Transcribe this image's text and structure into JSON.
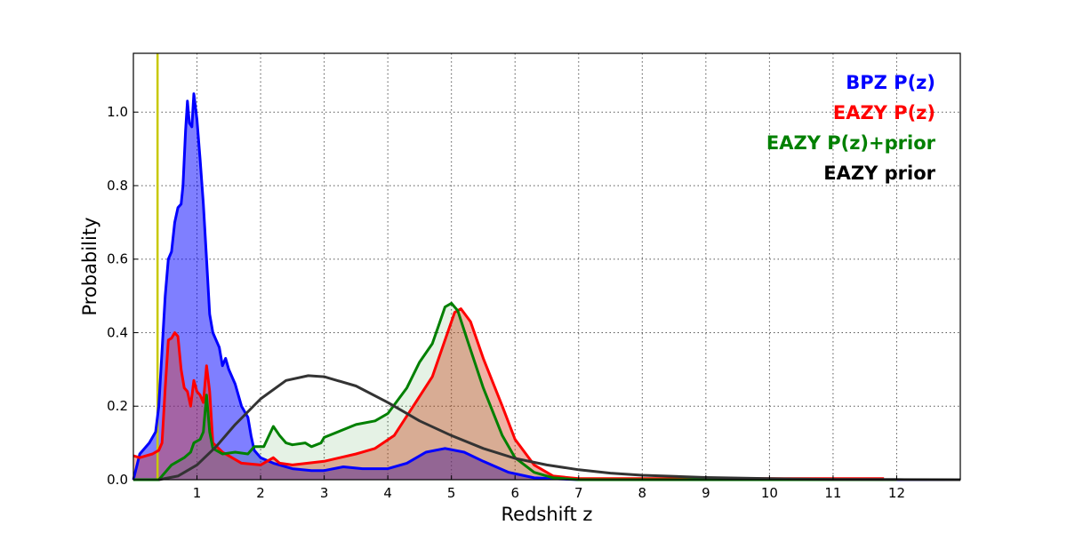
{
  "chart_data": {
    "type": "area",
    "title": "",
    "xlabel": "Redshift z",
    "ylabel": "Probability",
    "xlim": [
      0,
      13
    ],
    "ylim": [
      0,
      1.16
    ],
    "grid": true,
    "legend_position": "top-right",
    "xticks": [
      "1",
      "2",
      "3",
      "4",
      "5",
      "6",
      "7",
      "8",
      "9",
      "10",
      "11",
      "12"
    ],
    "yticks": [
      "0.0",
      "0.2",
      "0.4",
      "0.6",
      "0.8",
      "1.0"
    ],
    "vline": {
      "x": 0.38,
      "color": "#c8c800"
    },
    "series": [
      {
        "name": "BPZ P(z)",
        "color": "#0000ff",
        "fill": "rgba(0,0,255,0.5)",
        "x": [
          0,
          0.1,
          0.25,
          0.35,
          0.4,
          0.45,
          0.5,
          0.55,
          0.6,
          0.65,
          0.7,
          0.75,
          0.78,
          0.82,
          0.85,
          0.88,
          0.92,
          0.95,
          1.0,
          1.05,
          1.1,
          1.15,
          1.2,
          1.25,
          1.35,
          1.4,
          1.45,
          1.5,
          1.6,
          1.7,
          1.8,
          1.85,
          1.9,
          2.0,
          2.2,
          2.5,
          2.8,
          3.0,
          3.3,
          3.6,
          4.0,
          4.3,
          4.6,
          4.9,
          5.2,
          5.5,
          5.9,
          6.3,
          7,
          13
        ],
        "y": [
          0,
          0.07,
          0.1,
          0.13,
          0.2,
          0.35,
          0.5,
          0.6,
          0.62,
          0.7,
          0.74,
          0.75,
          0.8,
          0.95,
          1.03,
          0.97,
          0.96,
          1.05,
          0.98,
          0.87,
          0.75,
          0.6,
          0.45,
          0.4,
          0.36,
          0.31,
          0.33,
          0.3,
          0.26,
          0.2,
          0.17,
          0.12,
          0.08,
          0.06,
          0.045,
          0.03,
          0.025,
          0.025,
          0.035,
          0.03,
          0.03,
          0.045,
          0.075,
          0.085,
          0.075,
          0.05,
          0.02,
          0.005,
          0,
          0
        ]
      },
      {
        "name": "EAZY P(z)",
        "color": "#ff0000",
        "fill": "rgba(220,60,30,0.4)",
        "x": [
          0,
          0.1,
          0.2,
          0.3,
          0.4,
          0.45,
          0.5,
          0.55,
          0.6,
          0.65,
          0.7,
          0.75,
          0.8,
          0.85,
          0.9,
          0.95,
          1.0,
          1.05,
          1.1,
          1.15,
          1.2,
          1.25,
          1.4,
          1.5,
          1.7,
          2.0,
          2.2,
          2.3,
          2.5,
          3.0,
          3.5,
          3.8,
          4.1,
          4.4,
          4.7,
          4.9,
          5.05,
          5.15,
          5.3,
          5.5,
          5.8,
          6.0,
          6.3,
          6.6,
          7,
          11.8
        ],
        "y": [
          0.065,
          0.06,
          0.065,
          0.07,
          0.08,
          0.1,
          0.25,
          0.38,
          0.385,
          0.4,
          0.39,
          0.3,
          0.25,
          0.24,
          0.2,
          0.27,
          0.24,
          0.23,
          0.21,
          0.31,
          0.24,
          0.1,
          0.075,
          0.065,
          0.045,
          0.04,
          0.06,
          0.045,
          0.04,
          0.05,
          0.07,
          0.085,
          0.12,
          0.2,
          0.28,
          0.38,
          0.455,
          0.465,
          0.43,
          0.33,
          0.2,
          0.11,
          0.04,
          0.01,
          0.003,
          0.003
        ]
      },
      {
        "name": "EAZY P(z)+prior",
        "color": "#008000",
        "fill": "rgba(0,128,0,0.1)",
        "x": [
          0,
          0.4,
          0.5,
          0.6,
          0.7,
          0.8,
          0.9,
          0.95,
          1.05,
          1.1,
          1.15,
          1.2,
          1.25,
          1.4,
          1.6,
          1.8,
          1.9,
          2.05,
          2.2,
          2.3,
          2.4,
          2.5,
          2.7,
          2.8,
          2.95,
          3.0,
          3.5,
          3.8,
          4.0,
          4.3,
          4.5,
          4.7,
          4.8,
          4.9,
          5.0,
          5.1,
          5.25,
          5.5,
          5.8,
          6.0,
          6.3,
          6.6,
          7,
          12
        ],
        "y": [
          0,
          0,
          0.02,
          0.04,
          0.05,
          0.06,
          0.075,
          0.1,
          0.11,
          0.13,
          0.23,
          0.13,
          0.085,
          0.07,
          0.075,
          0.07,
          0.09,
          0.09,
          0.145,
          0.12,
          0.1,
          0.095,
          0.1,
          0.09,
          0.1,
          0.115,
          0.15,
          0.16,
          0.18,
          0.25,
          0.32,
          0.37,
          0.42,
          0.47,
          0.48,
          0.46,
          0.38,
          0.25,
          0.12,
          0.06,
          0.02,
          0.005,
          0,
          0
        ]
      },
      {
        "name": "EAZY prior",
        "color": "#333333",
        "fill": "none",
        "x": [
          0.4,
          0.7,
          1.0,
          1.3,
          1.6,
          2.0,
          2.4,
          2.75,
          3.0,
          3.5,
          4.0,
          4.5,
          5.0,
          5.5,
          6.0,
          6.5,
          7.0,
          7.5,
          8.0,
          9,
          10,
          11,
          12,
          13
        ],
        "y": [
          0,
          0.01,
          0.04,
          0.09,
          0.15,
          0.22,
          0.27,
          0.283,
          0.28,
          0.255,
          0.21,
          0.16,
          0.12,
          0.085,
          0.058,
          0.04,
          0.027,
          0.018,
          0.012,
          0.006,
          0.003,
          0.001,
          0.0005,
          0
        ]
      }
    ]
  }
}
